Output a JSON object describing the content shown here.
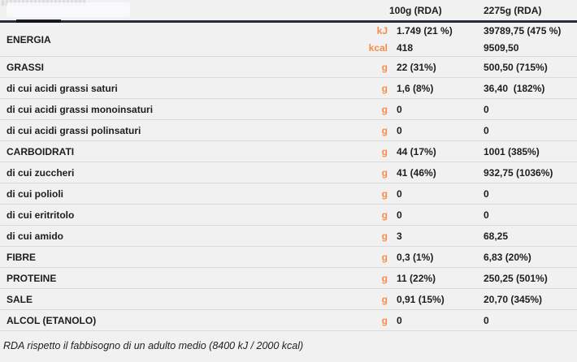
{
  "colors": {
    "background": "#F1F1F2",
    "accent_orange": "#F78C4A",
    "header_line": "#232D3B",
    "row_separator": "#DBDBDD",
    "text": "#1D1D1D"
  },
  "header": {
    "col1": "100g (RDA)",
    "col2": "2275g (RDA)"
  },
  "energy": {
    "label": "ENERGIA",
    "unit_kj": "kJ",
    "unit_kcal": "kcal",
    "kj_100g": "1.749 (21 %)",
    "kj_2275g": "39789,75 (475 %)",
    "kcal_100g": "418",
    "kcal_2275g": "9509,50"
  },
  "rows": [
    {
      "label": "GRASSI",
      "unit": "g",
      "v100": "22 (31%)",
      "v2275": "500,50 (715%)"
    },
    {
      "label": "di cui acidi grassi saturi",
      "unit": "g",
      "v100": "1,6 (8%)",
      "v2275": "36,40  (182%)"
    },
    {
      "label": "di cui acidi grassi monoinsaturi",
      "unit": "g",
      "v100": "0",
      "v2275": "0"
    },
    {
      "label": "di cui acidi grassi polinsaturi",
      "unit": "g",
      "v100": "0",
      "v2275": "0"
    },
    {
      "label": "CARBOIDRATI",
      "unit": "g",
      "v100": "44 (17%)",
      "v2275": "1001 (385%)"
    },
    {
      "label": "di cui zuccheri",
      "unit": "g",
      "v100": "41 (46%)",
      "v2275": "932,75 (1036%)"
    },
    {
      "label": "di cui polioli",
      "unit": "g",
      "v100": "0",
      "v2275": "0"
    },
    {
      "label": "di cui eritritolo",
      "unit": "g",
      "v100": "0",
      "v2275": "0"
    },
    {
      "label": "di cui amido",
      "unit": "g",
      "v100": "3",
      "v2275": "68,25"
    },
    {
      "label": "FIBRE",
      "unit": "g",
      "v100": "0,3 (1%)",
      "v2275": "6,83 (20%)"
    },
    {
      "label": "PROTEINE",
      "unit": "g",
      "v100": "11 (22%)",
      "v2275": "250,25 (501%)"
    },
    {
      "label": "SALE",
      "unit": "g",
      "v100": "0,91 (15%)",
      "v2275": "20,70 (345%)"
    },
    {
      "label": "ALCOL (ETANOLO)",
      "unit": "g",
      "v100": "0",
      "v2275": "0"
    }
  ],
  "footer": {
    "note": "RDA rispetto il fabbisogno di un adulto medio (8400 kJ / 2000 kcal)"
  }
}
